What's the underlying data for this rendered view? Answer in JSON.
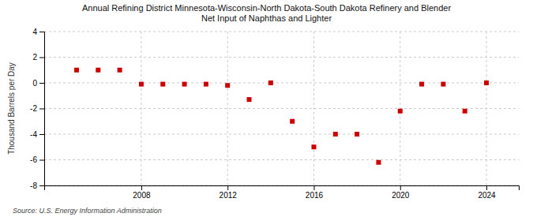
{
  "chart_data": {
    "type": "scatter",
    "title": "Annual Refining District Minnesota-Wisconsin-North Dakota-South Dakota Refinery and Blender\nNet Input of Naphthas and Lighter",
    "ylabel": "Thousand Barrels per Day",
    "source": "Source: U.S. Energy Information Administration",
    "x": [
      2005,
      2006,
      2007,
      2008,
      2009,
      2010,
      2011,
      2012,
      2013,
      2014,
      2015,
      2016,
      2017,
      2018,
      2019,
      2020,
      2021,
      2022,
      2023,
      2024
    ],
    "values": [
      1.0,
      1.0,
      1.0,
      -0.1,
      -0.1,
      -0.1,
      -0.1,
      -0.2,
      -1.3,
      0.0,
      -3.0,
      -5.0,
      -4.0,
      -4.0,
      -6.2,
      -2.2,
      -0.1,
      -0.1,
      -2.2,
      0.0
    ],
    "color": "#cc0000",
    "marker": "square",
    "xlim": [
      2003.5,
      2025.5
    ],
    "xticks": [
      2008,
      2012,
      2016,
      2020,
      2024
    ],
    "ylim": [
      -8,
      4
    ],
    "yticks": [
      -8,
      -6,
      -4,
      -2,
      0,
      2,
      4
    ],
    "grid": true
  }
}
